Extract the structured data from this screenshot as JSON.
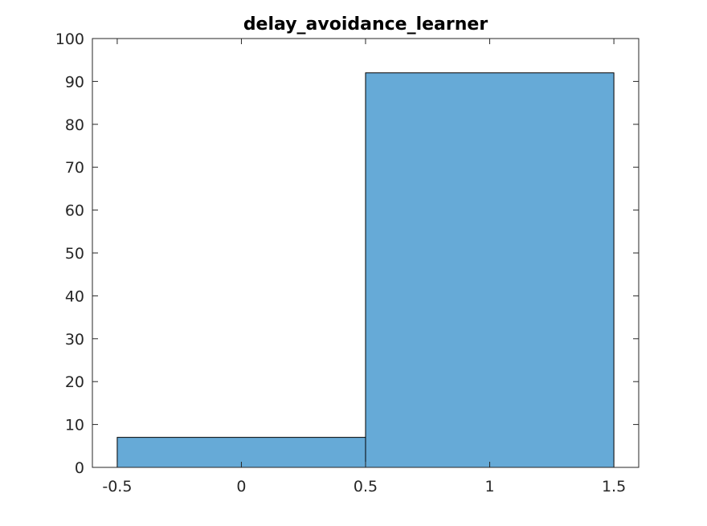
{
  "chart_data": {
    "type": "bar",
    "title": "delay_avoidance_learner",
    "xlabel": "",
    "ylabel": "",
    "bins": [
      {
        "x_start": -0.5,
        "x_end": 0.5,
        "value": 7
      },
      {
        "x_start": 0.5,
        "x_end": 1.5,
        "value": 92
      }
    ],
    "xlim": [
      -0.6,
      1.6
    ],
    "ylim": [
      0,
      100
    ],
    "x_ticks": [
      -0.5,
      0,
      0.5,
      1,
      1.5
    ],
    "x_tick_labels": [
      "-0.5",
      "0",
      "0.5",
      "1",
      "1.5"
    ],
    "y_ticks": [
      0,
      10,
      20,
      30,
      40,
      50,
      60,
      70,
      80,
      90,
      100
    ],
    "y_tick_labels": [
      "0",
      "10",
      "20",
      "30",
      "40",
      "50",
      "60",
      "70",
      "80",
      "90",
      "100"
    ],
    "bar_color": "#66aad7",
    "bar_edge_color": "#000000",
    "grid": false,
    "legend": "none"
  }
}
